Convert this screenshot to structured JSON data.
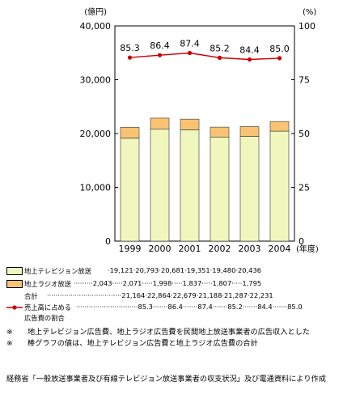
{
  "chart_data": {
    "type": "bar",
    "stacked": true,
    "categories": [
      "1999",
      "2000",
      "2001",
      "2002",
      "2003",
      "2004"
    ],
    "x_unit": "(年度)",
    "series": [
      {
        "name": "地上テレビジョン放送",
        "values": [
          19121,
          20793,
          20681,
          19351,
          19480,
          20436
        ],
        "color": "#f0f7bd"
      },
      {
        "name": "地上ラジオ放送",
        "values": [
          2043,
          2071,
          1998,
          1837,
          1807,
          1795
        ],
        "color": "#f9c373"
      }
    ],
    "totals": {
      "name": "合計",
      "values": [
        21164,
        22864,
        22679,
        21188,
        21287,
        22231
      ]
    },
    "line_series": {
      "name": "売上高に占める広告費の割合",
      "values": [
        85.3,
        86.4,
        87.4,
        85.2,
        84.4,
        85.0
      ],
      "labels": [
        "85.3",
        "86.4",
        "87.4",
        "85.2",
        "84.4",
        "85.0"
      ],
      "color": "#cc0000",
      "axis": "right"
    },
    "left_axis": {
      "unit": "(億円)",
      "ylim": [
        0,
        40000
      ],
      "ticks": [
        0,
        10000,
        20000,
        30000,
        40000
      ],
      "tick_labels": [
        "0",
        "10,000",
        "20,000",
        "30,000",
        "40,000"
      ]
    },
    "right_axis": {
      "unit": "(%)",
      "ylim": [
        0,
        100
      ],
      "ticks": [
        0,
        25,
        50,
        75,
        100
      ],
      "tick_labels": [
        "0",
        "25",
        "50",
        "75",
        "100"
      ]
    },
    "grid": false
  },
  "legend": {
    "rows": [
      {
        "name": "地上テレビジョン放送",
        "values_text": "·19,121·20,793·20,681·19,351·19,480·20,436"
      },
      {
        "name": "地上ラジオ放送",
        "values_text": "·········2,043·····2,071·····1,998·····1,837·····1,807·····1,795"
      },
      {
        "name": "合計",
        "values_text": "···································21,164·22,864·22,679·21,188·21,287·22,231"
      },
      {
        "name": "売上高に占める",
        "name2": "広告費の割合",
        "values_text": "·····························85.3·······86.4·······87.4·······85.2·······84.4·······85.0"
      }
    ]
  },
  "notes": [
    {
      "mark": "※",
      "text": "地上テレビジョン広告費、地上ラジオ広告費を民間地上放送事業者の広告収入とした"
    },
    {
      "mark": "※",
      "text": "棒グラフの値は、地上テレビジョン広告費と地上ラジオ広告費の合計"
    }
  ],
  "source": "経務省「一般放送事業者及び有線テレビジョン放送事業者の収支状況」及び電通資料により作成"
}
